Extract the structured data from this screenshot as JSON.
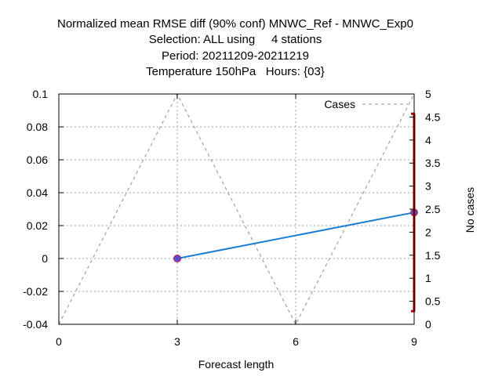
{
  "chart_data": {
    "type": "line",
    "title_lines": [
      "Normalized mean RMSE diff (90% conf) MNWC_Ref - MNWC_Exp0",
      "Selection: ALL using     4 stations",
      "Period: 20211209-20211219",
      "Temperature 150hPa   Hours: {03}"
    ],
    "xlabel": "Forecast length",
    "ylabel": "",
    "y2label": "No cases",
    "xlim": [
      0,
      9
    ],
    "ylim": [
      -0.04,
      0.1
    ],
    "y2lim": [
      0,
      5
    ],
    "x_ticks": [
      0,
      3,
      6,
      9
    ],
    "y_ticks": [
      "-0.04",
      "-0.02",
      "0",
      "0.02",
      "0.04",
      "0.06",
      "0.08",
      "0.1"
    ],
    "y2_ticks": [
      "0",
      "0.5",
      "1",
      "1.5",
      "2",
      "2.5",
      "3",
      "3.5",
      "4",
      "4.5",
      "5"
    ],
    "grid": true,
    "legend_position": "top-right",
    "series": [
      {
        "name": "Cases",
        "axis": "y2",
        "style": "dashed",
        "color": "#a0a0a0",
        "x": [
          0,
          3,
          6,
          9
        ],
        "y": [
          0,
          5,
          0,
          5
        ]
      },
      {
        "axis": "y",
        "style": "solid",
        "color": "#1a7fd4",
        "marker_color": "#5a4fd0",
        "x": [
          3,
          9
        ],
        "y": [
          0,
          0.028
        ]
      }
    ],
    "error_bars": [
      {
        "x": 9,
        "low": -0.032,
        "high": 0.088,
        "color": "#b00000"
      }
    ]
  }
}
